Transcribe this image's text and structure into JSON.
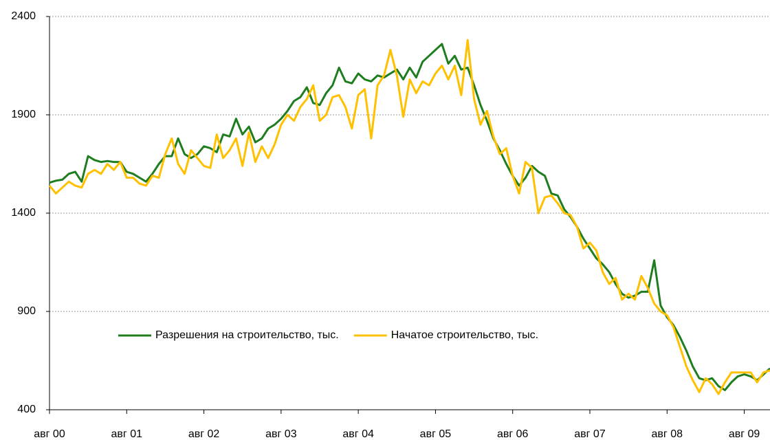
{
  "chart_data": {
    "type": "line",
    "categories": [
      "авг 00",
      null,
      null,
      null,
      null,
      null,
      null,
      null,
      null,
      null,
      null,
      null,
      "авг 01",
      null,
      null,
      null,
      null,
      null,
      null,
      null,
      null,
      null,
      null,
      null,
      "авг 02",
      null,
      null,
      null,
      null,
      null,
      null,
      null,
      null,
      null,
      null,
      null,
      "авг 03",
      null,
      null,
      null,
      null,
      null,
      null,
      null,
      null,
      null,
      null,
      null,
      "авг 04",
      null,
      null,
      null,
      null,
      null,
      null,
      null,
      null,
      null,
      null,
      null,
      "авг 05",
      null,
      null,
      null,
      null,
      null,
      null,
      null,
      null,
      null,
      null,
      null,
      "авг 06",
      null,
      null,
      null,
      null,
      null,
      null,
      null,
      null,
      null,
      null,
      null,
      "авг 07",
      null,
      null,
      null,
      null,
      null,
      null,
      null,
      null,
      null,
      null,
      null,
      "авг 08",
      null,
      null,
      null,
      null,
      null,
      null,
      null,
      null,
      null,
      null,
      null,
      "авг 09",
      null,
      null,
      null,
      null
    ],
    "series": [
      {
        "name": "Разрешения на строительство, тыс.",
        "color": "#1e7d1e",
        "values": [
          1555,
          1565,
          1570,
          1600,
          1610,
          1560,
          1690,
          1670,
          1660,
          1665,
          1660,
          1660,
          1610,
          1600,
          1580,
          1560,
          1600,
          1650,
          1690,
          1690,
          1780,
          1700,
          1680,
          1700,
          1740,
          1730,
          1710,
          1800,
          1790,
          1880,
          1800,
          1840,
          1760,
          1780,
          1830,
          1850,
          1880,
          1920,
          1970,
          1990,
          2040,
          1960,
          1950,
          2010,
          2050,
          2140,
          2070,
          2060,
          2110,
          2080,
          2070,
          2100,
          2090,
          2110,
          2130,
          2080,
          2140,
          2090,
          2170,
          2200,
          2230,
          2260,
          2160,
          2200,
          2130,
          2140,
          2050,
          1950,
          1870,
          1780,
          1720,
          1650,
          1590,
          1540,
          1580,
          1640,
          1610,
          1590,
          1500,
          1490,
          1420,
          1380,
          1330,
          1270,
          1220,
          1170,
          1140,
          1100,
          1040,
          990,
          970,
          980,
          1000,
          1000,
          1160,
          930,
          870,
          830,
          770,
          700,
          620,
          560,
          550,
          560,
          520,
          500,
          540,
          570,
          580,
          570,
          550,
          580,
          610
        ]
      },
      {
        "name": "Начатое строительство, тыс.",
        "color": "#ffc000",
        "values": [
          1540,
          1500,
          1530,
          1560,
          1540,
          1530,
          1600,
          1620,
          1600,
          1650,
          1620,
          1660,
          1580,
          1580,
          1550,
          1540,
          1590,
          1580,
          1700,
          1780,
          1650,
          1600,
          1720,
          1680,
          1640,
          1630,
          1800,
          1680,
          1720,
          1780,
          1640,
          1810,
          1660,
          1740,
          1680,
          1750,
          1850,
          1900,
          1870,
          1940,
          1980,
          2050,
          1870,
          1900,
          1990,
          2000,
          1940,
          1830,
          2000,
          2030,
          1780,
          2050,
          2100,
          2230,
          2100,
          1890,
          2080,
          2010,
          2070,
          2050,
          2110,
          2150,
          2080,
          2150,
          2000,
          2280,
          1980,
          1850,
          1920,
          1790,
          1700,
          1730,
          1590,
          1500,
          1660,
          1630,
          1400,
          1480,
          1490,
          1450,
          1400,
          1390,
          1330,
          1220,
          1250,
          1210,
          1100,
          1040,
          1070,
          960,
          990,
          960,
          1080,
          1020,
          940,
          900,
          880,
          820,
          720,
          620,
          550,
          490,
          560,
          530,
          480,
          540,
          590,
          590,
          590,
          590,
          540,
          590,
          600
        ]
      }
    ],
    "ylim": [
      400,
      2400
    ],
    "yticks": [
      400,
      900,
      1400,
      1900,
      2400
    ],
    "grid": true,
    "legend": "lower center"
  }
}
